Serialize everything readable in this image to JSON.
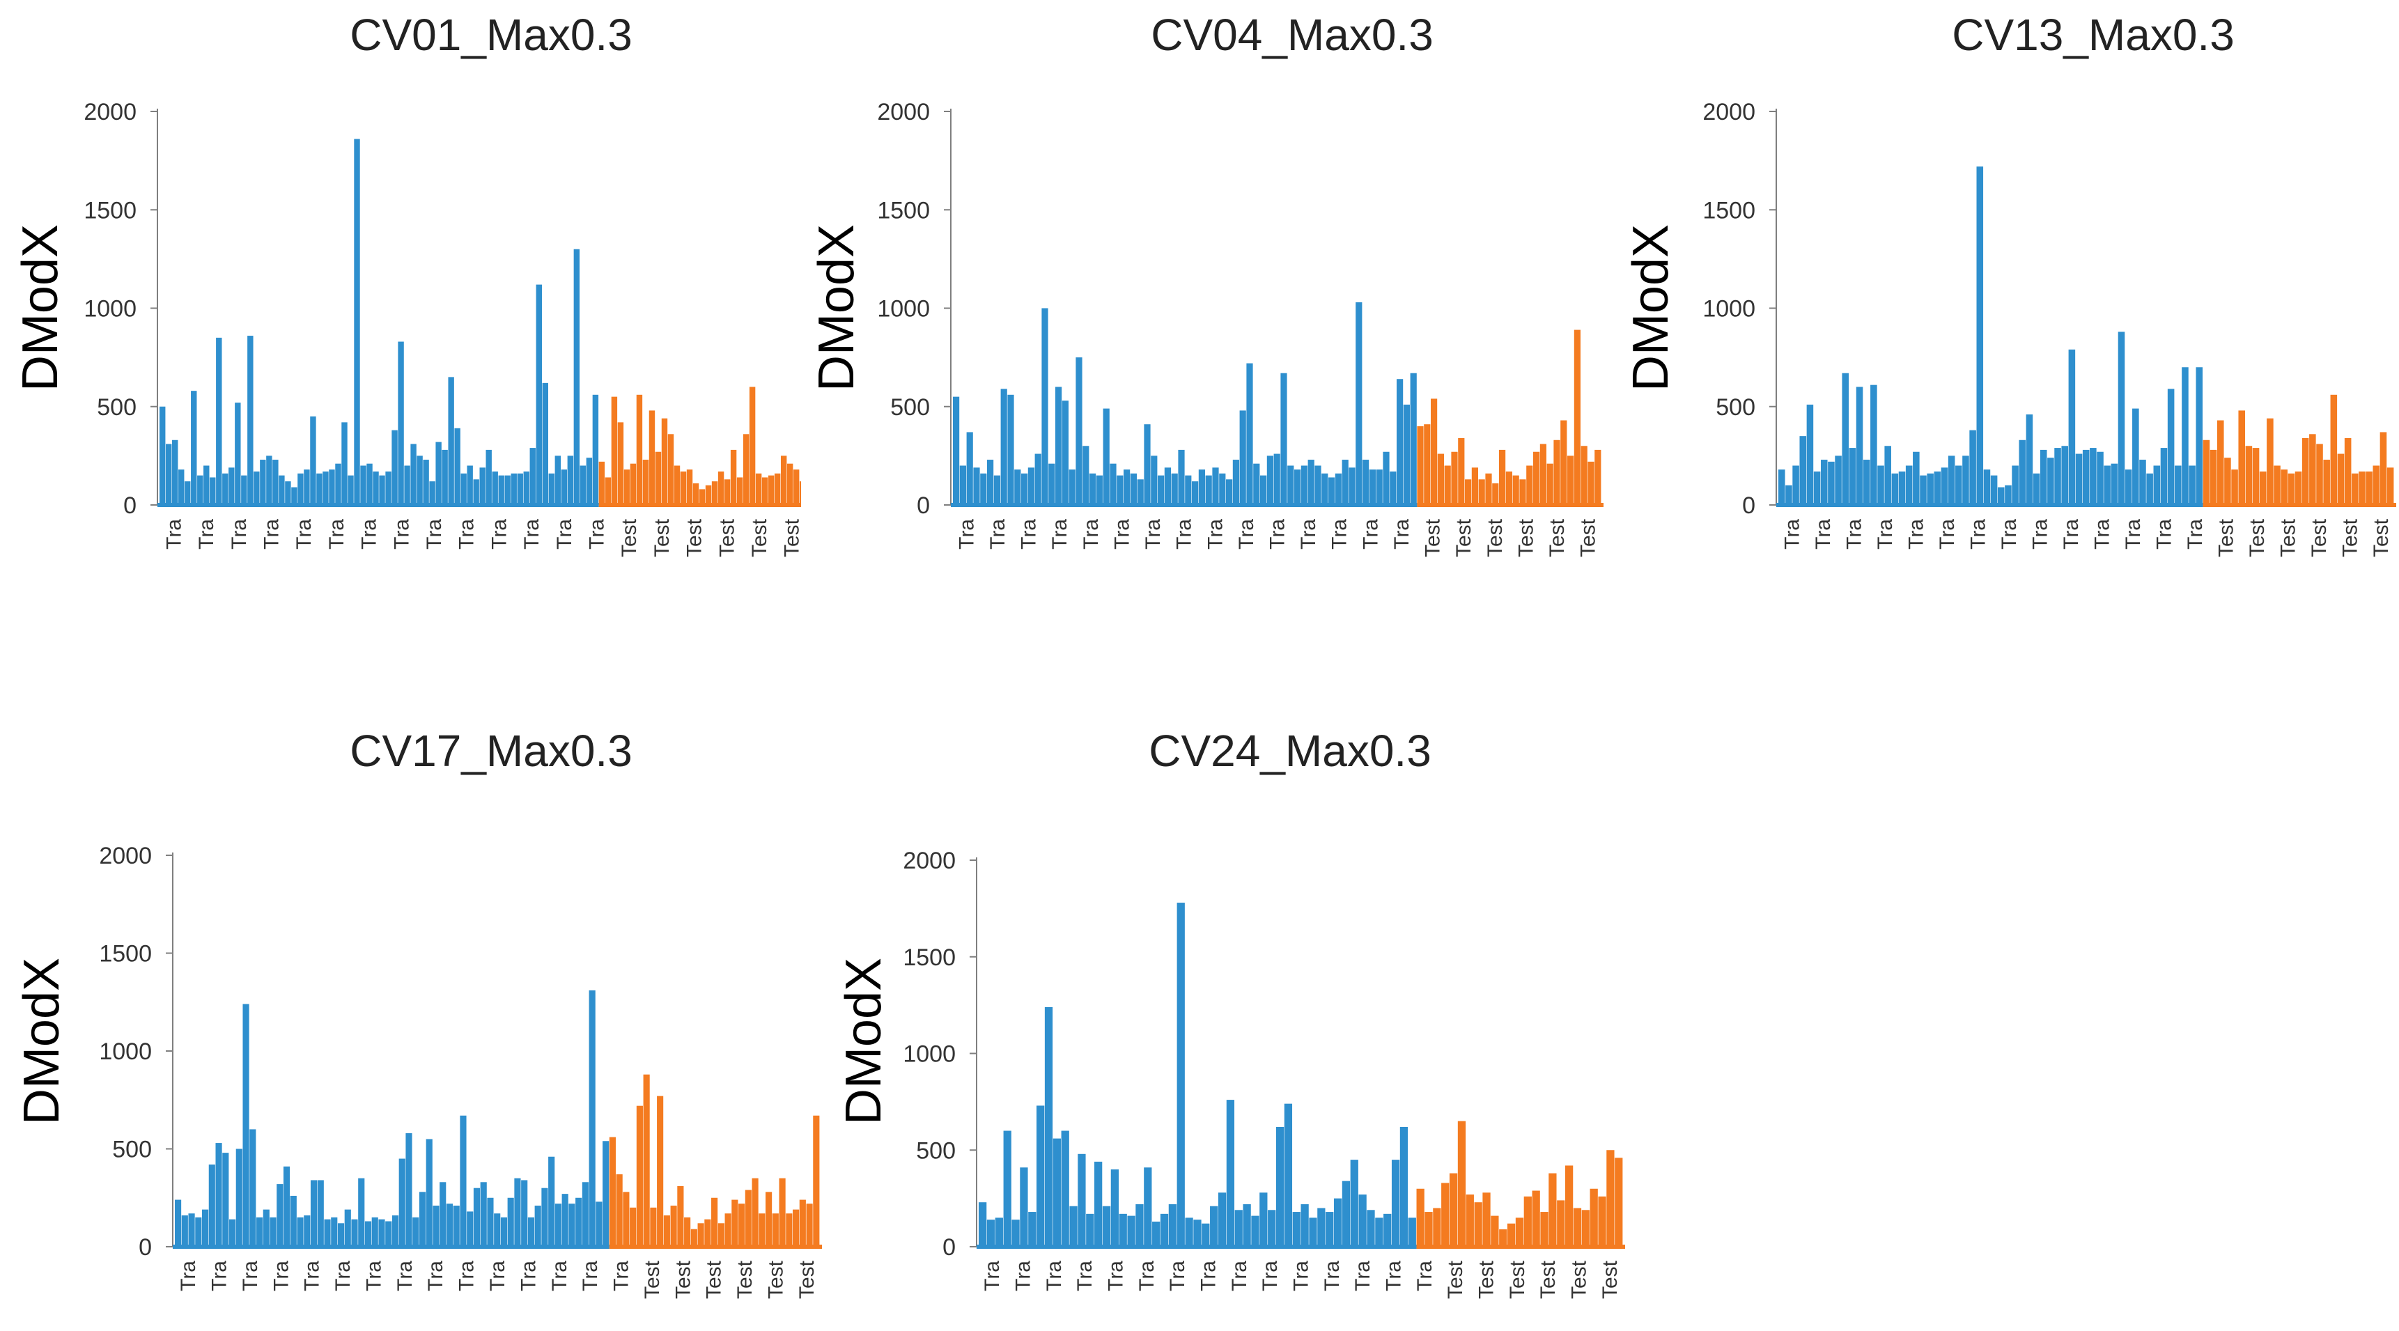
{
  "colors": {
    "train": "#2e8fce",
    "test": "#f47b20",
    "axis": "#7f7f7f"
  },
  "chart_data": [
    {
      "type": "bar",
      "title": "CV01_Max0.3",
      "ylabel": "DModX",
      "xlabel": "",
      "ylim": [
        0,
        2000
      ],
      "yticks": [
        0,
        500,
        1000,
        1500,
        2000
      ],
      "tick_labels": [
        "Tra",
        "Tra",
        "Tra",
        "Tra",
        "Tra",
        "Tra",
        "Tra",
        "Tra",
        "Tra",
        "Tra",
        "Tra",
        "Tra",
        "Tra",
        "Tra",
        "Test",
        "Test",
        "Test",
        "Test",
        "Test",
        "Test"
      ],
      "series": [
        {
          "name": "Training",
          "values": [
            500,
            310,
            330,
            180,
            120,
            580,
            150,
            200,
            140,
            850,
            160,
            190,
            520,
            150,
            860,
            170,
            230,
            250,
            230,
            150,
            120,
            90,
            160,
            180,
            450,
            160,
            170,
            180,
            210,
            420,
            150,
            1860,
            200,
            210,
            170,
            150,
            170,
            380,
            830,
            200,
            310,
            250,
            230,
            120,
            320,
            280,
            650,
            390,
            160,
            200,
            130,
            190,
            280,
            170,
            150,
            150,
            160,
            160,
            170,
            290,
            1120,
            620,
            160,
            250,
            180,
            250,
            1300,
            200,
            240,
            560
          ]
        },
        {
          "name": "Test",
          "values": [
            220,
            140,
            550,
            420,
            180,
            210,
            560,
            230,
            480,
            270,
            440,
            360,
            200,
            170,
            180,
            110,
            80,
            100,
            120,
            170,
            130,
            280,
            140,
            360,
            600,
            160,
            140,
            150,
            160,
            250,
            210,
            180,
            120
          ]
        }
      ]
    },
    {
      "type": "bar",
      "title": "CV04_Max0.3",
      "ylabel": "DModX",
      "xlabel": "",
      "ylim": [
        0,
        2000
      ],
      "yticks": [
        0,
        500,
        1000,
        1500,
        2000
      ],
      "tick_labels": [
        "Tra",
        "Tra",
        "Tra",
        "Tra",
        "Tra",
        "Tra",
        "Tra",
        "Tra",
        "Tra",
        "Tra",
        "Tra",
        "Tra",
        "Tra",
        "Tra",
        "Tra",
        "Test",
        "Test",
        "Test",
        "Test",
        "Test",
        "Test"
      ],
      "series": [
        {
          "name": "Training",
          "values": [
            550,
            200,
            370,
            190,
            160,
            230,
            150,
            590,
            560,
            180,
            160,
            190,
            260,
            1000,
            210,
            600,
            530,
            180,
            750,
            300,
            160,
            150,
            490,
            210,
            150,
            180,
            160,
            130,
            410,
            250,
            150,
            190,
            160,
            280,
            150,
            120,
            180,
            150,
            190,
            160,
            130,
            230,
            480,
            720,
            210,
            150,
            250,
            260,
            670,
            200,
            180,
            200,
            230,
            200,
            160,
            140,
            160,
            230,
            190,
            1030,
            230,
            180,
            180,
            270,
            170,
            640,
            510,
            670
          ]
        },
        {
          "name": "Test",
          "values": [
            400,
            410,
            540,
            260,
            200,
            270,
            340,
            130,
            190,
            130,
            160,
            110,
            280,
            170,
            150,
            130,
            200,
            270,
            310,
            210,
            330,
            430,
            250,
            890,
            300,
            220,
            280
          ]
        }
      ]
    },
    {
      "type": "bar",
      "title": "CV13_Max0.3",
      "ylabel": "DModX",
      "xlabel": "",
      "ylim": [
        0,
        2000
      ],
      "yticks": [
        0,
        500,
        1000,
        1500,
        2000
      ],
      "tick_labels": [
        "Tra",
        "Tra",
        "Tra",
        "Tra",
        "Tra",
        "Tra",
        "Tra",
        "Tra",
        "Tra",
        "Tra",
        "Tra",
        "Tra",
        "Tra",
        "Tra",
        "Test",
        "Test",
        "Test",
        "Test",
        "Test",
        "Test"
      ],
      "series": [
        {
          "name": "Training",
          "values": [
            180,
            100,
            200,
            350,
            510,
            170,
            230,
            220,
            250,
            670,
            290,
            600,
            230,
            610,
            200,
            300,
            160,
            170,
            200,
            270,
            150,
            160,
            170,
            190,
            250,
            200,
            250,
            380,
            1720,
            180,
            150,
            90,
            100,
            200,
            330,
            460,
            160,
            280,
            240,
            290,
            300,
            790,
            260,
            280,
            290,
            270,
            200,
            210,
            880,
            180,
            490,
            230,
            160,
            200,
            290,
            590,
            200,
            700,
            200,
            700
          ]
        },
        {
          "name": "Test",
          "values": [
            330,
            280,
            430,
            240,
            180,
            480,
            300,
            290,
            170,
            440,
            200,
            180,
            160,
            170,
            340,
            360,
            310,
            230,
            560,
            260,
            340,
            160,
            170,
            170,
            200,
            370,
            190
          ]
        }
      ]
    },
    {
      "type": "bar",
      "title": "CV17_Max0.3",
      "ylabel": "DModX",
      "xlabel": "",
      "ylim": [
        0,
        2000
      ],
      "yticks": [
        0,
        500,
        1000,
        1500,
        2000
      ],
      "tick_labels": [
        "Tra",
        "Tra",
        "Tra",
        "Tra",
        "Tra",
        "Tra",
        "Tra",
        "Tra",
        "Tra",
        "Tra",
        "Tra",
        "Tra",
        "Tra",
        "Tra",
        "Tra",
        "Test",
        "Test",
        "Test",
        "Test",
        "Test",
        "Test"
      ],
      "series": [
        {
          "name": "Training",
          "values": [
            240,
            160,
            170,
            150,
            190,
            420,
            530,
            480,
            140,
            500,
            1240,
            600,
            150,
            190,
            150,
            320,
            410,
            260,
            150,
            160,
            340,
            340,
            140,
            150,
            120,
            190,
            140,
            350,
            130,
            150,
            140,
            130,
            160,
            450,
            580,
            150,
            280,
            550,
            210,
            330,
            220,
            210,
            670,
            180,
            300,
            330,
            250,
            170,
            150,
            250,
            350,
            340,
            150,
            210,
            300,
            460,
            220,
            270,
            220,
            250,
            330,
            1310,
            230,
            540
          ]
        },
        {
          "name": "Test",
          "values": [
            560,
            370,
            280,
            200,
            720,
            880,
            200,
            770,
            160,
            210,
            310,
            150,
            90,
            120,
            140,
            250,
            120,
            170,
            240,
            220,
            290,
            350,
            170,
            280,
            170,
            350,
            170,
            190,
            240,
            220,
            670
          ]
        }
      ]
    },
    {
      "type": "bar",
      "title": "CV24_Max0.3",
      "ylabel": "DModX",
      "xlabel": "",
      "ylim": [
        0,
        2000
      ],
      "yticks": [
        0,
        500,
        1000,
        1500,
        2000
      ],
      "tick_labels": [
        "Tra",
        "Tra",
        "Tra",
        "Tra",
        "Tra",
        "Tra",
        "Tra",
        "Tra",
        "Tra",
        "Tra",
        "Tra",
        "Tra",
        "Tra",
        "Tra",
        "Tra",
        "Test",
        "Test",
        "Test",
        "Test",
        "Test",
        "Test"
      ],
      "series": [
        {
          "name": "Training",
          "values": [
            230,
            140,
            150,
            600,
            140,
            410,
            180,
            730,
            1240,
            560,
            600,
            210,
            480,
            170,
            440,
            210,
            400,
            170,
            160,
            220,
            410,
            130,
            170,
            220,
            1780,
            150,
            140,
            120,
            210,
            280,
            760,
            190,
            220,
            160,
            280,
            190,
            620,
            740,
            180,
            220,
            150,
            200,
            180,
            250,
            340,
            450,
            270,
            190,
            150,
            170,
            450,
            620,
            150
          ]
        },
        {
          "name": "Test",
          "values": [
            300,
            180,
            200,
            330,
            380,
            650,
            270,
            230,
            280,
            160,
            90,
            120,
            150,
            260,
            290,
            180,
            380,
            240,
            420,
            200,
            190,
            300,
            260,
            500,
            460
          ]
        }
      ]
    }
  ]
}
